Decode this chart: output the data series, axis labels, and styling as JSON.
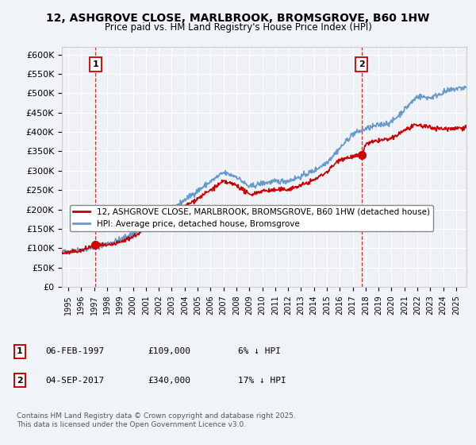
{
  "title": "12, ASHGROVE CLOSE, MARLBROOK, BROMSGROVE, B60 1HW",
  "subtitle": "Price paid vs. HM Land Registry's House Price Index (HPI)",
  "ylim": [
    0,
    620000
  ],
  "yticks": [
    0,
    50000,
    100000,
    150000,
    200000,
    250000,
    300000,
    350000,
    400000,
    450000,
    500000,
    550000,
    600000
  ],
  "ytick_labels": [
    "£0",
    "£50K",
    "£100K",
    "£150K",
    "£200K",
    "£250K",
    "£300K",
    "£350K",
    "£400K",
    "£450K",
    "£500K",
    "£550K",
    "£600K"
  ],
  "hpi_color": "#6699cc",
  "price_color": "#cc0000",
  "marker1_date": 1997.1,
  "marker2_date": 2017.67,
  "marker1_price": 109000,
  "marker2_price": 340000,
  "legend_line1": "12, ASHGROVE CLOSE, MARLBROOK, BROMSGROVE, B60 1HW (detached house)",
  "legend_line2": "HPI: Average price, detached house, Bromsgrove",
  "footnote": "Contains HM Land Registry data © Crown copyright and database right 2025.\nThis data is licensed under the Open Government Licence v3.0.",
  "xlim_start": 1994.5,
  "xlim_end": 2025.8,
  "ann1_num": "1",
  "ann1_date": "06-FEB-1997",
  "ann1_price": "£109,000",
  "ann1_hpi": "6% ↓ HPI",
  "ann2_num": "2",
  "ann2_date": "04-SEP-2017",
  "ann2_price": "£340,000",
  "ann2_hpi": "17% ↓ HPI"
}
